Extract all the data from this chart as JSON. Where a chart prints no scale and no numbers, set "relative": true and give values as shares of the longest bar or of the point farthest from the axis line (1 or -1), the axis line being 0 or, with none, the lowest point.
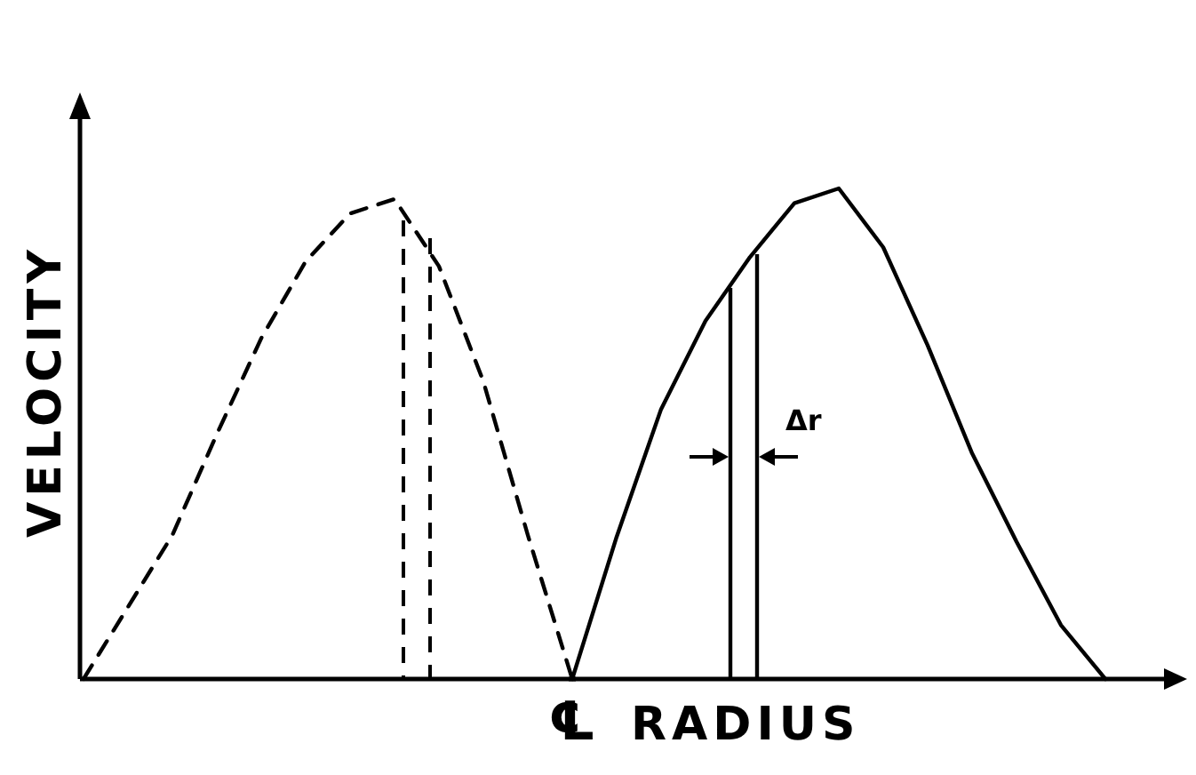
{
  "chart_data": [
    {
      "type": "line",
      "relative": true,
      "ylabel": "VELOCITY",
      "grid": false,
      "marker": "none",
      "categories": [
        null,
        null,
        null,
        null,
        null,
        null,
        null,
        null,
        null,
        null,
        null,
        null
      ],
      "series": [
        {
          "color": "#000000",
          "line_style": "dashed",
          "values": [
            0,
            0.15,
            0.3,
            0.51,
            0.71,
            0.87,
            0.97,
            1,
            0.86,
            0.62,
            0.3,
            0
          ]
        }
      ]
    },
    {
      "type": "line",
      "relative": true,
      "xlabel": "RADIUS",
      "grid": false,
      "marker": "none",
      "categories": [
        null,
        null,
        null,
        null,
        null,
        null,
        null,
        null,
        null,
        null,
        null,
        null,
        null
      ],
      "series": [
        {
          "color": "#000000",
          "line_style": "solid",
          "values": [
            0,
            0.29,
            0.55,
            0.73,
            0.86,
            0.97,
            1,
            0.88,
            0.68,
            0.46,
            0.28,
            0.11,
            0
          ]
        }
      ],
      "annotations": [
        "Δr",
        "℄"
      ]
    }
  ]
}
